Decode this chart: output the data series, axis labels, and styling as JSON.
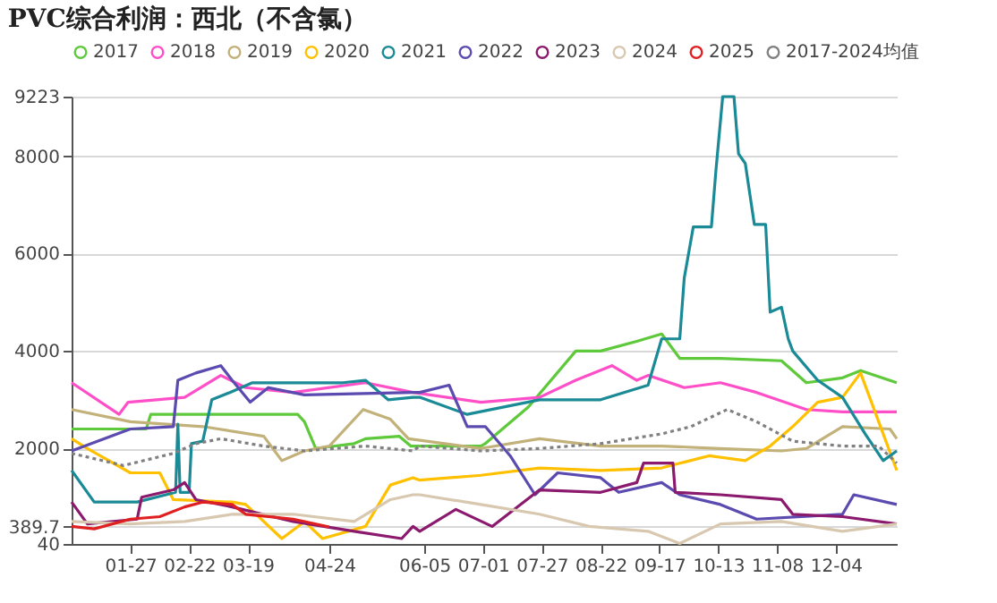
{
  "chart_data": {
    "type": "line",
    "title": "PVC综合利润：西北（不含氯）",
    "xlim": [
      "--01-01",
      "--12-31"
    ],
    "xticks": [
      {
        "value": "--01-27",
        "label": "01-27"
      },
      {
        "value": "--02-22",
        "label": "02-22"
      },
      {
        "value": "--03-19",
        "label": "03-19"
      },
      {
        "value": "--04-24",
        "label": "04-24"
      },
      {
        "value": "--06-05",
        "label": "06-05"
      },
      {
        "value": "--07-01",
        "label": "07-01"
      },
      {
        "value": "--07-27",
        "label": "07-27"
      },
      {
        "value": "--08-22",
        "label": "08-22"
      },
      {
        "value": "--09-17",
        "label": "09-17"
      },
      {
        "value": "--10-13",
        "label": "10-13"
      },
      {
        "value": "--11-08",
        "label": "11-08"
      },
      {
        "value": "--12-04",
        "label": "12-04"
      }
    ],
    "ylim": [
      40,
      9223
    ],
    "yticks": [
      40,
      389.7,
      2000,
      4000,
      6000,
      8000,
      9223
    ],
    "grid": "y",
    "legend": "top",
    "line_style": "solid",
    "series": [
      {
        "name": "2017",
        "color": "#5ec93a",
        "x": [
          "--01-01",
          "--02-03",
          "--02-05",
          "--04-10",
          "--04-13",
          "--04-18",
          "--05-05",
          "--05-10",
          "--05-25",
          "--05-30",
          "--06-30",
          "--07-02",
          "--07-21",
          "--08-11",
          "--08-22",
          "--09-07",
          "--09-18",
          "--09-26",
          "--10-14",
          "--11-10",
          "--11-21",
          "--12-07",
          "--12-15",
          "--12-31"
        ],
        "values": [
          2400,
          2400,
          2700,
          2700,
          2550,
          2000,
          2100,
          2200,
          2250,
          2050,
          2050,
          2100,
          2850,
          4000,
          4000,
          4200,
          4350,
          3850,
          3850,
          3800,
          3350,
          3450,
          3600,
          3350
        ]
      },
      {
        "name": "2018",
        "color": "#ff4fc8",
        "x": [
          "--01-01",
          "--01-22",
          "--01-26",
          "--02-20",
          "--03-07",
          "--03-18",
          "--04-08",
          "--05-10",
          "--05-31",
          "--06-30",
          "--07-26",
          "--08-11",
          "--08-27",
          "--09-07",
          "--09-12",
          "--09-28",
          "--10-14",
          "--10-30",
          "--11-21",
          "--12-07",
          "--12-31"
        ],
        "values": [
          3350,
          2700,
          2950,
          3050,
          3500,
          3250,
          3150,
          3350,
          3150,
          2950,
          3050,
          3400,
          3700,
          3400,
          3500,
          3250,
          3350,
          3150,
          2800,
          2750,
          2750
        ]
      },
      {
        "name": "2019",
        "color": "#c2b27a",
        "x": [
          "--01-01",
          "--01-27",
          "--02-28",
          "--03-26",
          "--04-03",
          "--04-13",
          "--04-24",
          "--05-09",
          "--05-21",
          "--05-29",
          "--06-30",
          "--07-26",
          "--08-22",
          "--09-18",
          "--10-14",
          "--11-10",
          "--11-21",
          "--12-07",
          "--12-28",
          "--12-31"
        ],
        "values": [
          2800,
          2550,
          2450,
          2250,
          1750,
          1950,
          2050,
          2800,
          2600,
          2200,
          2000,
          2200,
          2050,
          2050,
          2000,
          1950,
          2000,
          2450,
          2400,
          2200
        ]
      },
      {
        "name": "2020",
        "color": "#ffc000",
        "x": [
          "--01-01",
          "--01-08",
          "--01-27",
          "--02-09",
          "--02-15",
          "--03-12",
          "--03-18",
          "--04-03",
          "--04-13",
          "--04-21",
          "--05-10",
          "--05-21",
          "--05-31",
          "--06-03",
          "--06-30",
          "--07-26",
          "--08-22",
          "--09-18",
          "--10-09",
          "--10-25",
          "--11-05",
          "--11-15",
          "--11-26",
          "--12-07",
          "--12-15",
          "--12-23",
          "--12-31"
        ],
        "values": [
          2200,
          2000,
          1500,
          1500,
          950,
          900,
          850,
          150,
          500,
          150,
          400,
          1250,
          1400,
          1350,
          1450,
          1600,
          1550,
          1600,
          1850,
          1750,
          2050,
          2450,
          2950,
          3050,
          3550,
          2550,
          1550
        ]
      },
      {
        "name": "2021",
        "color": "#1a8a96",
        "x": [
          "--01-01",
          "--01-11",
          "--01-30",
          "--02-16",
          "--02-17",
          "--02-18",
          "--02-22",
          "--02-23",
          "--02-28",
          "--03-03",
          "--03-11",
          "--03-21",
          "--04-10",
          "--04-30",
          "--05-10",
          "--05-20",
          "--05-31",
          "--06-03",
          "--06-24",
          "--07-26",
          "--08-22",
          "--09-12",
          "--09-18",
          "--09-26",
          "--09-28",
          "--10-02",
          "--10-10",
          "--10-12",
          "--10-15",
          "--10-20",
          "--10-22",
          "--10-25",
          "--10-29",
          "--11-03",
          "--11-05",
          "--11-10",
          "--11-13",
          "--11-15",
          "--11-26",
          "--12-07",
          "--12-17",
          "--12-25",
          "--12-31"
        ],
        "values": [
          1550,
          900,
          900,
          1100,
          2500,
          1100,
          1100,
          2100,
          2150,
          3000,
          3150,
          3350,
          3350,
          3350,
          3400,
          3000,
          3050,
          3050,
          2700,
          3000,
          3000,
          3300,
          4250,
          4250,
          5500,
          6550,
          6550,
          7700,
          9223,
          9223,
          8050,
          7850,
          6600,
          6600,
          4800,
          4900,
          4250,
          4000,
          3400,
          3050,
          2300,
          1750,
          1950
        ]
      },
      {
        "name": "2022",
        "color": "#5b4bb0",
        "x": [
          "--01-01",
          "--01-27",
          "--02-15",
          "--02-17",
          "--02-25",
          "--03-07",
          "--03-12",
          "--03-20",
          "--03-28",
          "--04-13",
          "--05-31",
          "--06-03",
          "--06-16",
          "--06-24",
          "--07-02",
          "--07-13",
          "--07-24",
          "--08-03",
          "--08-22",
          "--08-30",
          "--09-18",
          "--09-26",
          "--10-14",
          "--10-30",
          "--12-07",
          "--12-12",
          "--12-31"
        ],
        "values": [
          1950,
          2400,
          2450,
          3400,
          3550,
          3700,
          3400,
          2950,
          3250,
          3100,
          3150,
          3150,
          3300,
          2450,
          2450,
          1850,
          1050,
          1500,
          1400,
          1100,
          1300,
          1050,
          850,
          550,
          650,
          1050,
          850
        ]
      },
      {
        "name": "2023",
        "color": "#8b1a6e",
        "x": [
          "--01-01",
          "--01-08",
          "--01-30",
          "--02-01",
          "--02-15",
          "--02-20",
          "--02-25",
          "--03-12",
          "--04-08",
          "--05-05",
          "--05-26",
          "--05-31",
          "--06-03",
          "--06-19",
          "--07-05",
          "--07-26",
          "--08-22",
          "--09-07",
          "--09-10",
          "--09-23",
          "--09-24",
          "--10-14",
          "--11-10",
          "--11-15",
          "--12-07",
          "--12-31"
        ],
        "values": [
          900,
          450,
          550,
          1000,
          1150,
          1300,
          950,
          800,
          500,
          300,
          150,
          400,
          300,
          750,
          400,
          1150,
          1100,
          1300,
          1700,
          1700,
          1100,
          1050,
          950,
          650,
          600,
          450
        ]
      },
      {
        "name": "2024",
        "color": "#d8c8b0",
        "x": [
          "--01-01",
          "--01-27",
          "--02-20",
          "--03-12",
          "--04-08",
          "--05-05",
          "--05-21",
          "--05-31",
          "--06-03",
          "--06-30",
          "--07-26",
          "--08-17",
          "--09-12",
          "--09-26",
          "--10-14",
          "--11-10",
          "--12-07",
          "--12-31"
        ],
        "values": [
          500,
          450,
          500,
          650,
          650,
          500,
          950,
          1050,
          1050,
          850,
          650,
          400,
          300,
          50,
          450,
          500,
          300,
          450
        ]
      },
      {
        "name": "2025",
        "color": "#e02020",
        "x": [
          "--01-01",
          "--01-11",
          "--01-27",
          "--02-09",
          "--02-20",
          "--02-28",
          "--03-12",
          "--03-18",
          "--04-08",
          "--04-24"
        ],
        "values": [
          400,
          350,
          550,
          600,
          800,
          900,
          850,
          650,
          550,
          389.7
        ]
      },
      {
        "name": "2017-2024均值",
        "color": "#808080",
        "line_style": "dotted",
        "x": [
          "--01-01",
          "--01-24",
          "--02-15",
          "--02-25",
          "--03-07",
          "--03-26",
          "--04-13",
          "--05-10",
          "--05-31",
          "--06-03",
          "--06-30",
          "--07-26",
          "--08-22",
          "--09-18",
          "--10-01",
          "--10-17",
          "--10-30",
          "--11-15",
          "--12-07",
          "--12-23",
          "--12-31"
        ],
        "values": [
          1900,
          1650,
          1900,
          2100,
          2200,
          2050,
          1950,
          2050,
          1950,
          2050,
          1950,
          2000,
          2100,
          2300,
          2450,
          2800,
          2550,
          2150,
          2050,
          2050,
          1700
        ]
      }
    ]
  }
}
